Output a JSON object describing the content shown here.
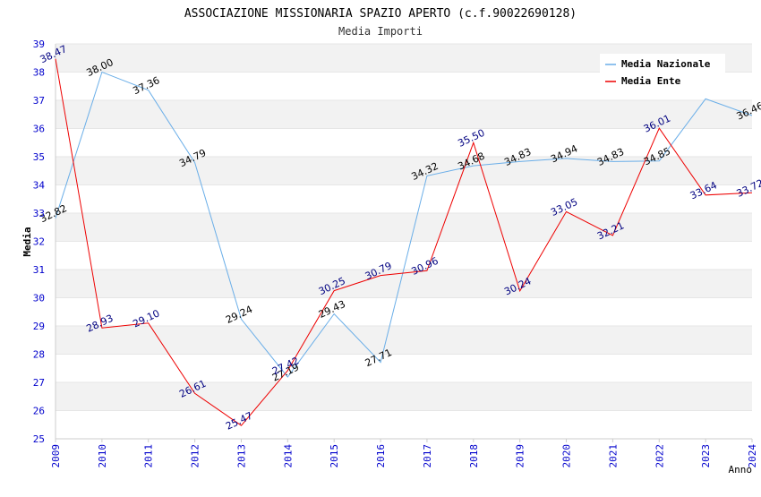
{
  "chart_data": {
    "type": "line",
    "title": "ASSOCIAZIONE MISSIONARIA SPAZIO APERTO (c.f.90022690128)",
    "subtitle": "Media Importi",
    "xlabel": "Anno",
    "ylabel": "Media",
    "ylim": [
      25,
      39
    ],
    "y_ticks": [
      "25",
      "26",
      "27",
      "28",
      "29",
      "30",
      "31",
      "32",
      "33",
      "34",
      "35",
      "36",
      "37",
      "38",
      "39"
    ],
    "categories": [
      "2009",
      "2010",
      "2011",
      "2012",
      "2013",
      "2014",
      "2015",
      "2016",
      "2017",
      "2018",
      "2019",
      "2020",
      "2021",
      "2022",
      "2023",
      "2024"
    ],
    "grid": true,
    "legend_position": "top-right",
    "series": [
      {
        "name": "Media Nazionale",
        "color": "#6aaee8",
        "label_color": "#000000",
        "values": [
          32.82,
          38.0,
          37.36,
          34.79,
          29.24,
          27.19,
          29.43,
          27.71,
          34.32,
          34.68,
          34.83,
          34.94,
          34.83,
          34.85,
          37.05,
          36.46
        ],
        "labels": [
          "32.82",
          "38.00",
          "37.36",
          "34.79",
          "29.24",
          "27.19",
          "29.43",
          "27.71",
          "34.32",
          "34.68",
          "34.83",
          "34.94",
          "34.83",
          "34.85",
          "",
          "36.46"
        ]
      },
      {
        "name": "Media Ente",
        "color": "#ee0000",
        "label_color": "#000080",
        "values": [
          38.47,
          28.93,
          29.1,
          26.61,
          25.47,
          27.42,
          30.25,
          30.79,
          30.96,
          35.5,
          30.24,
          33.05,
          32.21,
          36.01,
          33.64,
          33.72
        ],
        "labels": [
          "38.47",
          "28.93",
          "29.10",
          "26.61",
          "25.47",
          "27.42",
          "30.25",
          "30.79",
          "30.96",
          "35.50",
          "30.24",
          "33.05",
          "32.21",
          "36.01",
          "33.64",
          "33.72"
        ]
      }
    ]
  },
  "colors": {
    "tick_label": "#0000cc",
    "band": "#f2f2f2",
    "axis": "#cccccc"
  }
}
